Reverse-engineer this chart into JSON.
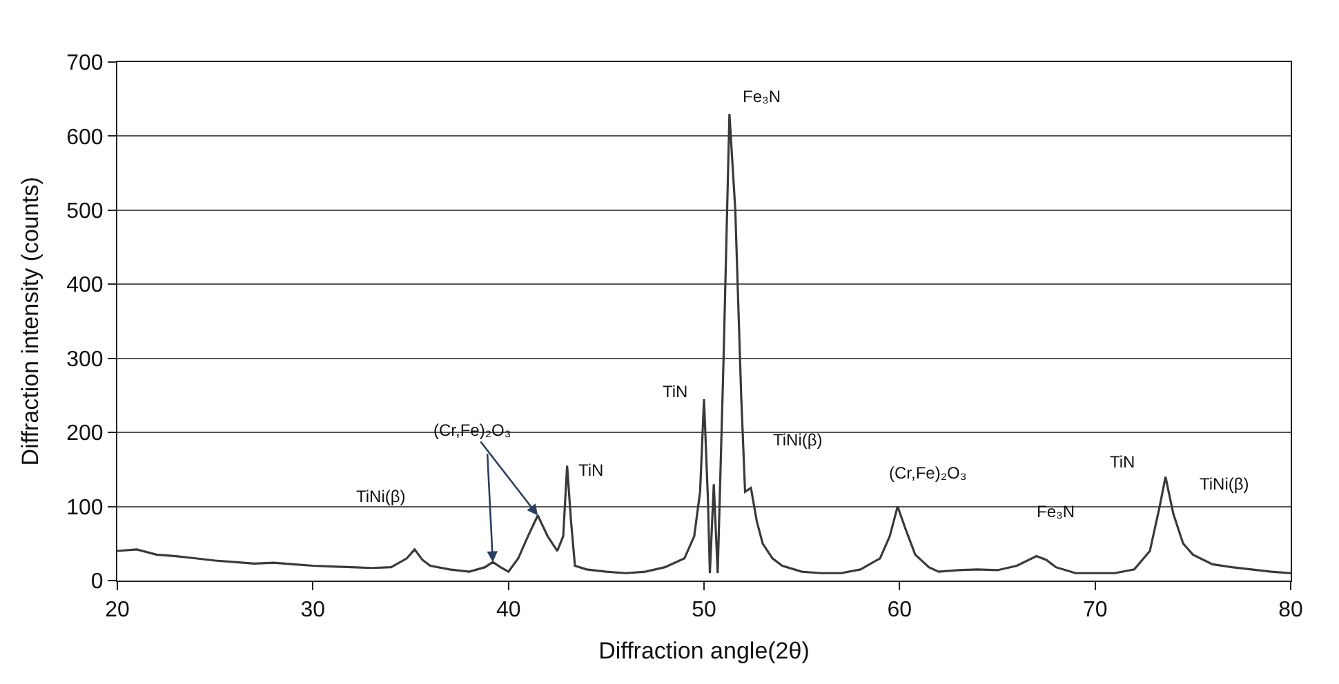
{
  "chart_data": {
    "type": "line",
    "xlabel": "Diffraction angle(2θ)",
    "ylabel": "Diffraction intensity (counts)",
    "xlim": [
      20,
      80
    ],
    "xticks": [
      20,
      30,
      40,
      50,
      60,
      70,
      80
    ],
    "ylim": [
      0,
      700
    ],
    "yticks": [
      0,
      100,
      200,
      300,
      400,
      500,
      600,
      700
    ],
    "grid": "y",
    "legend": false,
    "marker": "none",
    "line_style": "solid",
    "series": [
      {
        "color": "#3a3a3a",
        "x": [
          20,
          21,
          22,
          23,
          24,
          25,
          26,
          27,
          28,
          29,
          30,
          31,
          32,
          33,
          34,
          34.8,
          35.2,
          35.6,
          36,
          37,
          38,
          38.8,
          39.2,
          39.6,
          40,
          40.5,
          41,
          41.5,
          42,
          42.5,
          42.8,
          43,
          43.2,
          43.4,
          44,
          45,
          46,
          47,
          48,
          49,
          49.5,
          49.8,
          50,
          50.2,
          50.3,
          50.5,
          50.7,
          51,
          51.3,
          51.6,
          51.9,
          52.1,
          52.4,
          52.7,
          53,
          53.5,
          54,
          55,
          56,
          57,
          58,
          59,
          59.5,
          59.9,
          60.3,
          60.8,
          61.5,
          62,
          63,
          64,
          65,
          66,
          67,
          67.5,
          68,
          69,
          70,
          71,
          72,
          72.8,
          73.3,
          73.6,
          74,
          74.5,
          75,
          76,
          77,
          78,
          79,
          80
        ],
        "values": [
          40,
          42,
          35,
          33,
          30,
          27,
          25,
          23,
          24,
          22,
          20,
          19,
          18,
          17,
          18,
          30,
          42,
          28,
          20,
          15,
          12,
          18,
          25,
          18,
          12,
          30,
          60,
          88,
          60,
          40,
          60,
          155,
          80,
          20,
          15,
          12,
          10,
          12,
          18,
          30,
          60,
          120,
          245,
          110,
          10,
          130,
          10,
          300,
          630,
          500,
          250,
          120,
          125,
          80,
          50,
          30,
          20,
          12,
          10,
          10,
          15,
          30,
          60,
          100,
          70,
          35,
          18,
          12,
          14,
          15,
          14,
          20,
          33,
          28,
          18,
          10,
          10,
          10,
          15,
          40,
          100,
          140,
          90,
          50,
          35,
          22,
          18,
          15,
          12,
          10
        ]
      }
    ],
    "annotations": [
      {
        "text": "TiNi(β)",
        "x": 35.2,
        "y": 42
      },
      {
        "text": "(Cr,Fe)₂O₃",
        "x": 41.5,
        "y": 88
      },
      {
        "text": "TiN",
        "x": 43,
        "y": 155
      },
      {
        "text": "TiN",
        "x": 50,
        "y": 245
      },
      {
        "text": "Fe₃N",
        "x": 51.3,
        "y": 630
      },
      {
        "text": "TiNi(β)",
        "x": 52.4,
        "y": 125
      },
      {
        "text": "(Cr,Fe)₂O₃",
        "x": 59.9,
        "y": 100
      },
      {
        "text": "Fe₃N",
        "x": 67,
        "y": 33
      },
      {
        "text": "TiN",
        "x": 73.6,
        "y": 140
      },
      {
        "text": "TiNi(β)",
        "x": 73.6,
        "y": 140
      }
    ]
  }
}
